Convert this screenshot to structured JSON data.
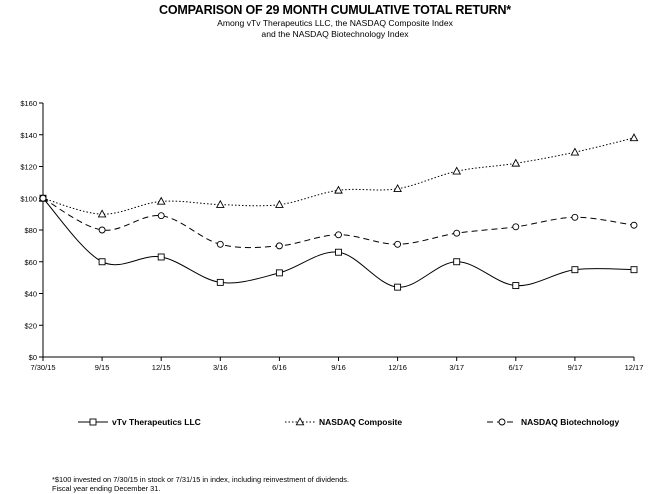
{
  "title": "COMPARISON OF 29 MONTH CUMULATIVE TOTAL RETURN*",
  "subtitle_line1": "Among vTv Therapeutics LLC, the NASDAQ Composite Index",
  "subtitle_line2": "and the NASDAQ Biotechnology Index",
  "footnote_line1": "*$100 invested on 7/30/15 in stock or 7/31/15 in index, including reinvestment of dividends.",
  "footnote_line2": "Fiscal year ending December 31.",
  "chart_data": {
    "type": "line",
    "categories": [
      "7/30/15",
      "9/15",
      "12/15",
      "3/16",
      "6/16",
      "9/16",
      "12/16",
      "3/17",
      "6/17",
      "9/17",
      "12/17"
    ],
    "y_tick_labels": [
      "$0",
      "$20",
      "$40",
      "$60",
      "$80",
      "$100",
      "$120",
      "$140",
      "$160"
    ],
    "ylim": [
      0,
      160
    ],
    "grid": false,
    "legend_position": "bottom",
    "series": [
      {
        "name": "vTv Therapeutics LLC",
        "marker": "square",
        "line_style": "solid",
        "values": [
          100,
          60,
          63,
          47,
          53,
          66,
          44,
          60,
          45,
          55,
          55
        ]
      },
      {
        "name": "NASDAQ Composite",
        "marker": "triangle",
        "line_style": "dotted",
        "values": [
          100,
          90,
          98,
          96,
          96,
          105,
          106,
          117,
          122,
          129,
          138
        ]
      },
      {
        "name": "NASDAQ Biotechnology",
        "marker": "circle",
        "line_style": "dashed",
        "values": [
          100,
          80,
          89,
          71,
          70,
          77,
          71,
          78,
          82,
          88,
          83
        ]
      }
    ]
  }
}
